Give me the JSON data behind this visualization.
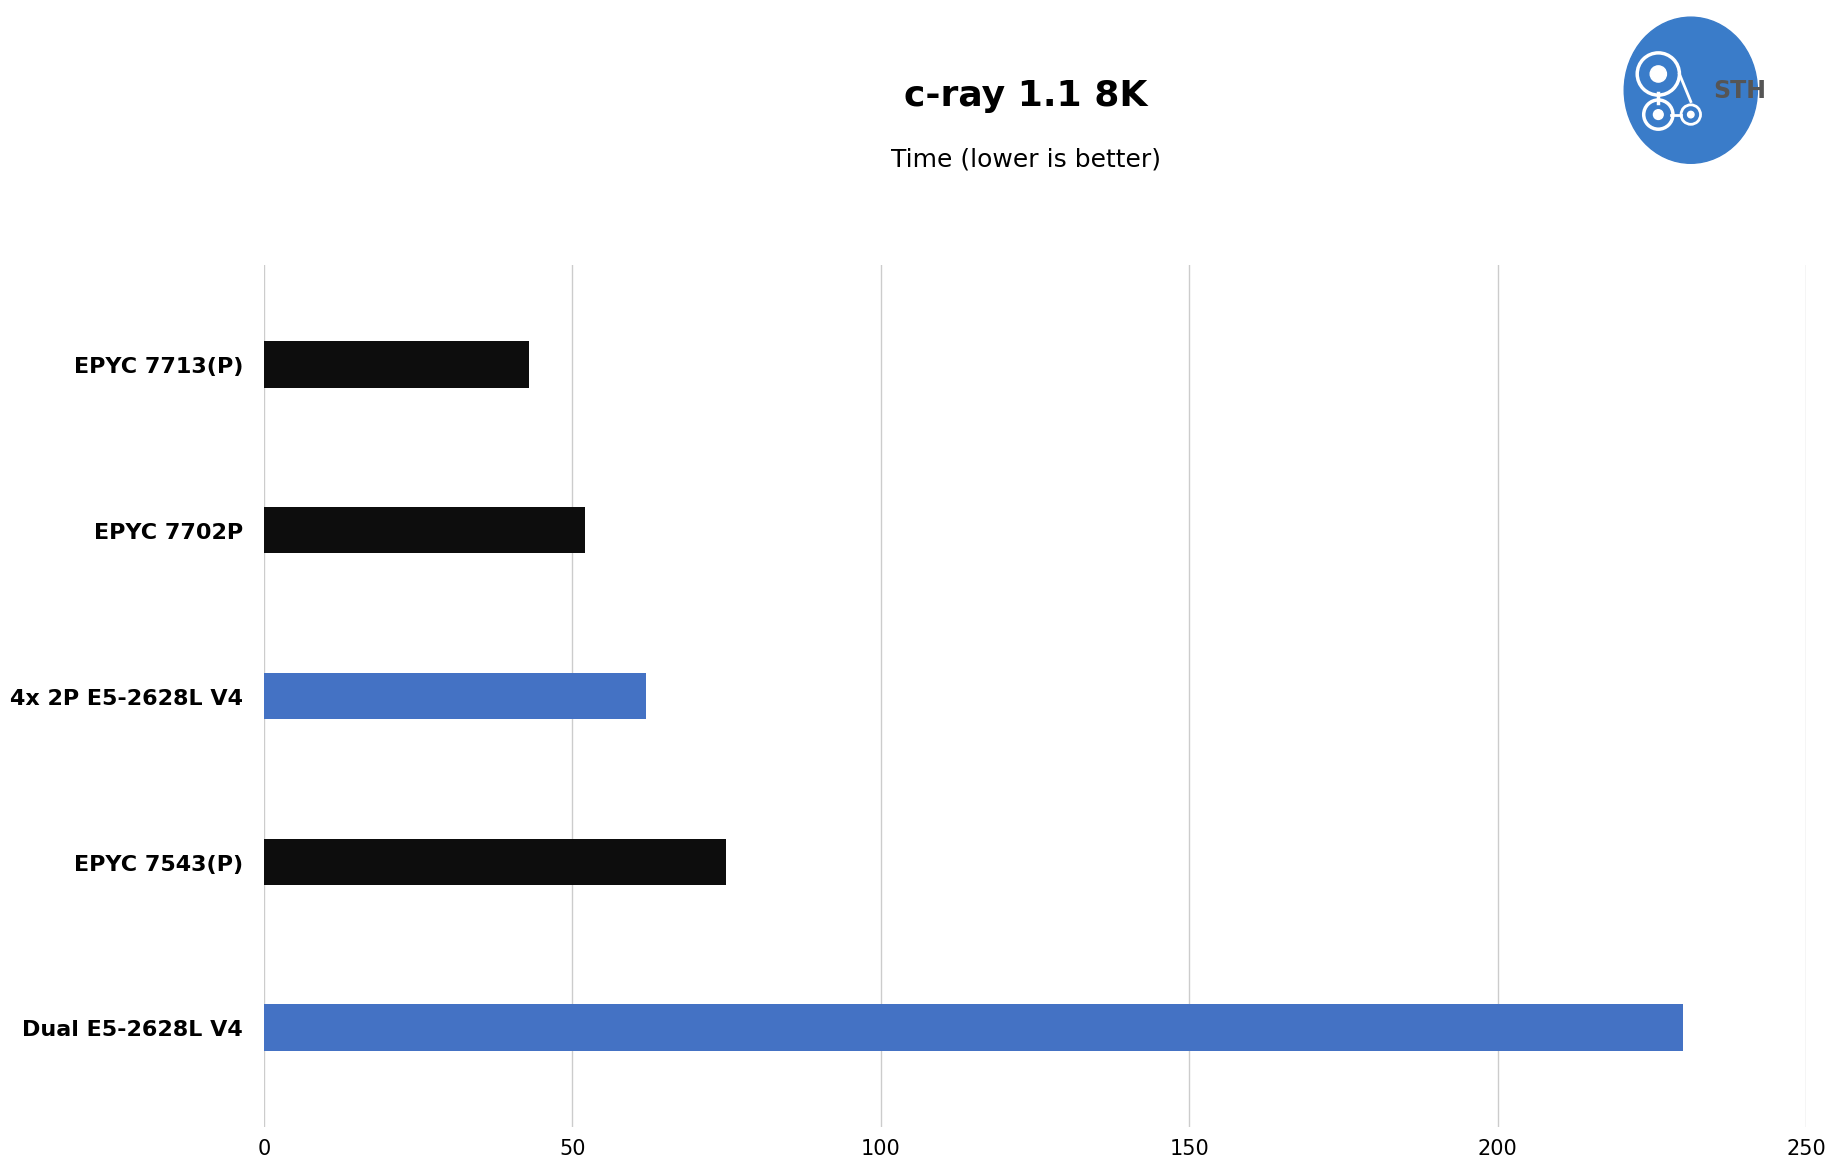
{
  "title": "c-ray 1.1 8K",
  "subtitle": "Time (lower is better)",
  "categories": [
    "Dual E5-2628L V4",
    "EPYC 7543(P)",
    "4x 2P E5-2628L V4",
    "EPYC 7702P",
    "EPYC 7713(P)"
  ],
  "values": [
    230,
    75,
    62,
    52,
    43
  ],
  "bar_colors": [
    "#4472C4",
    "#0d0d0d",
    "#4472C4",
    "#0d0d0d",
    "#0d0d0d"
  ],
  "xlim": [
    0,
    250
  ],
  "xticks": [
    0,
    50,
    100,
    150,
    200,
    250
  ],
  "background_color": "#ffffff",
  "title_fontsize": 26,
  "subtitle_fontsize": 18,
  "label_fontsize": 16,
  "tick_fontsize": 15,
  "bar_height": 0.28,
  "grid_color": "#cccccc",
  "title_fontweight": "bold"
}
